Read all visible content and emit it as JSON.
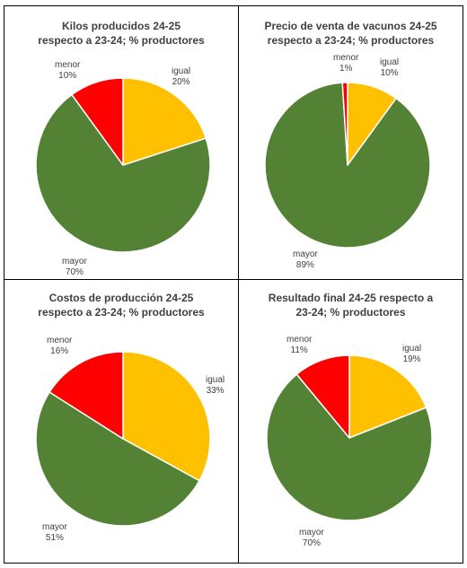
{
  "chart_data": [
    {
      "type": "pie",
      "title": "Kilos producidos 24-25\nrespecto a 23-24; % productores",
      "slices": [
        {
          "label": "igual",
          "value": 20,
          "display": "20%",
          "color": "#FFC000"
        },
        {
          "label": "mayor",
          "value": 70,
          "display": "70%",
          "color": "#548235"
        },
        {
          "label": "menor",
          "value": 10,
          "display": "10%",
          "color": "#FF0000"
        }
      ]
    },
    {
      "type": "pie",
      "title": "Precio de venta de vacunos 24-25\nrespecto a 23-24; % productores",
      "slices": [
        {
          "label": "igual",
          "value": 10,
          "display": "10%",
          "color": "#FFC000"
        },
        {
          "label": "mayor",
          "value": 89,
          "display": "89%",
          "color": "#548235"
        },
        {
          "label": "menor",
          "value": 1,
          "display": "1%",
          "color": "#FF0000"
        }
      ]
    },
    {
      "type": "pie",
      "title": "Costos de producción 24-25\nrespecto a 23-24; % productores",
      "slices": [
        {
          "label": "igual",
          "value": 33,
          "display": "33%",
          "color": "#FFC000"
        },
        {
          "label": "mayor",
          "value": 51,
          "display": "51%",
          "color": "#548235"
        },
        {
          "label": "menor",
          "value": 16,
          "display": "16%",
          "color": "#FF0000"
        }
      ]
    },
    {
      "type": "pie",
      "title": "Resultado final 24-25 respecto a\n23-24; % productores",
      "slices": [
        {
          "label": "igual",
          "value": 19,
          "display": "19%",
          "color": "#FFC000"
        },
        {
          "label": "mayor",
          "value": 70,
          "display": "70%",
          "color": "#548235"
        },
        {
          "label": "menor",
          "value": 11,
          "display": "11%",
          "color": "#FF0000"
        }
      ]
    }
  ]
}
